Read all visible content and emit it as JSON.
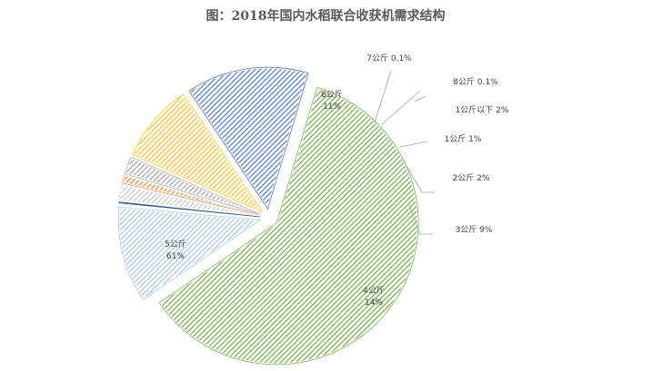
{
  "chart_data": {
    "type": "pie",
    "title": "图：2018年国内水稻联合收获机需求结构",
    "slices": [
      {
        "name": "1公斤以下",
        "value": 2,
        "value_label": "2%",
        "color": "#ffffff",
        "hatch": "#c9c9c9"
      },
      {
        "name": "1公斤",
        "value": 1,
        "value_label": "1%",
        "color": "#ef8b4b",
        "hatch": "#ef8b4b"
      },
      {
        "name": "2公斤",
        "value": 2,
        "value_label": "2%",
        "color": "#a5a5a5",
        "hatch": "#a5a5a5"
      },
      {
        "name": "3公斤",
        "value": 9,
        "value_label": "9%",
        "color": "#ffc000",
        "hatch": "#f5c13a"
      },
      {
        "name": "4公斤",
        "value": 14,
        "value_label": "14%",
        "color": "#4472c4",
        "hatch": "#5a82cc"
      },
      {
        "name": "5公斤",
        "value": 61,
        "value_label": "61%",
        "color": "#70ad47",
        "hatch": "#79b254"
      },
      {
        "name": "6公斤",
        "value": 11,
        "value_label": "11%",
        "color": "#9dc3e6",
        "hatch": "#a9c8ea"
      },
      {
        "name": "7公斤",
        "value": 0.1,
        "value_label": "0.1%",
        "color": "#7f7f7f",
        "hatch": "#9a9a9a"
      },
      {
        "name": "8公斤",
        "value": 0.1,
        "value_label": "0.1%",
        "color": "#264478",
        "hatch": "#264478"
      }
    ]
  }
}
